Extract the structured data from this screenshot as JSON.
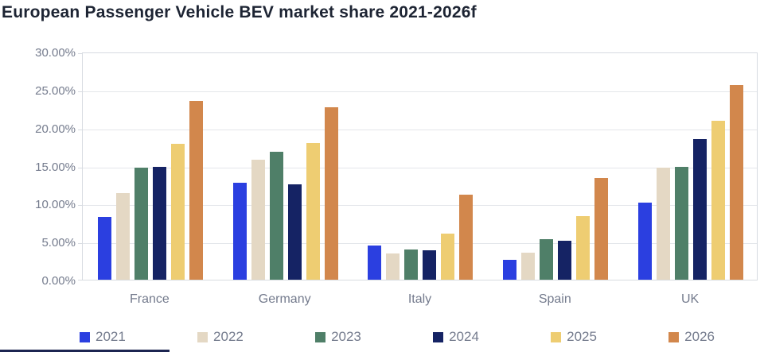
{
  "title": "European Passenger Vehicle BEV market share 2021-2026f",
  "chart_data": {
    "type": "bar",
    "title": "European Passenger Vehicle BEV market share 2021-2026f",
    "categories": [
      "France",
      "Germany",
      "Italy",
      "Spain",
      "UK"
    ],
    "series": [
      {
        "name": "2021",
        "color": "#2b3fe0",
        "values": [
          8.3,
          12.8,
          4.5,
          2.6,
          10.2
        ]
      },
      {
        "name": "2022",
        "color": "#e4d8c4",
        "values": [
          11.5,
          15.9,
          3.5,
          3.6,
          14.8
        ]
      },
      {
        "name": "2023",
        "color": "#4f7f68",
        "values": [
          14.8,
          17.0,
          4.0,
          5.4,
          15.0
        ]
      },
      {
        "name": "2024",
        "color": "#152364",
        "values": [
          14.9,
          12.6,
          3.9,
          5.2,
          18.6
        ]
      },
      {
        "name": "2025",
        "color": "#eecd72",
        "values": [
          18.0,
          18.1,
          6.1,
          8.4,
          21.1
        ]
      },
      {
        "name": "2026",
        "color": "#d2874c",
        "values": [
          23.7,
          22.8,
          11.3,
          13.5,
          25.8
        ]
      }
    ],
    "xlabel": "",
    "ylabel": "",
    "ylim": [
      0,
      30
    ],
    "ytick_step": 5,
    "yticks": [
      "30.00%",
      "25.00%",
      "20.00%",
      "15.00%",
      "10.00%",
      "5.00%",
      "0.00%"
    ],
    "grid": true,
    "gridlines": "horizontal",
    "legend_position": "bottom"
  },
  "decor": {
    "accent_strip_color": "#1c2551"
  }
}
